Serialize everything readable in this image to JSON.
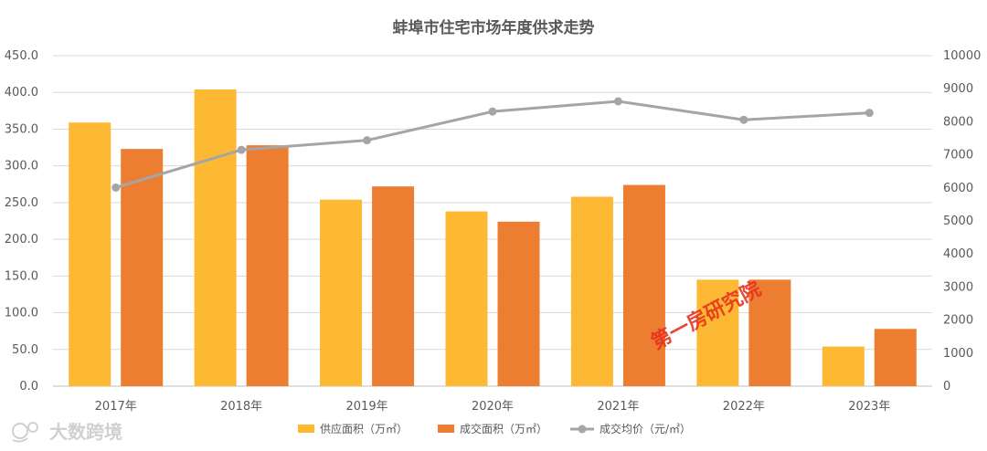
{
  "chart_data": {
    "type": "bar",
    "title": "蚌埠市住宅市场年度供求走势",
    "categories": [
      "2017年",
      "2018年",
      "2019年",
      "2020年",
      "2021年",
      "2022年",
      "2023年"
    ],
    "series": [
      {
        "name": "供应面积（万㎡）",
        "type": "bar",
        "axis": "left",
        "color": "#fdb933",
        "values": [
          359,
          404,
          254,
          238,
          258,
          145,
          54
        ]
      },
      {
        "name": "成交面积（万㎡）",
        "type": "bar",
        "axis": "left",
        "color": "#ed7d31",
        "values": [
          323,
          328,
          272,
          224,
          274,
          145,
          78
        ]
      },
      {
        "name": "成交均价（元/㎡）",
        "type": "line",
        "axis": "right",
        "color": "#a5a5a5",
        "values": [
          6010,
          7150,
          7440,
          8310,
          8620,
          8060,
          8270
        ]
      }
    ],
    "left_axis": {
      "min": 0,
      "max": 450,
      "step": 50,
      "ticks": [
        "0.0",
        "50.0",
        "100.0",
        "150.0",
        "200.0",
        "250.0",
        "300.0",
        "350.0",
        "400.0",
        "450.0"
      ]
    },
    "right_axis": {
      "min": 0,
      "max": 10000,
      "step": 1000,
      "ticks": [
        "0",
        "1000",
        "2000",
        "3000",
        "4000",
        "5000",
        "6000",
        "7000",
        "8000",
        "9000",
        "10000"
      ]
    },
    "grid": true,
    "legend_position": "bottom"
  },
  "watermark": {
    "stamp_text": "第一房研究院",
    "logo_text": "大数跨境"
  }
}
